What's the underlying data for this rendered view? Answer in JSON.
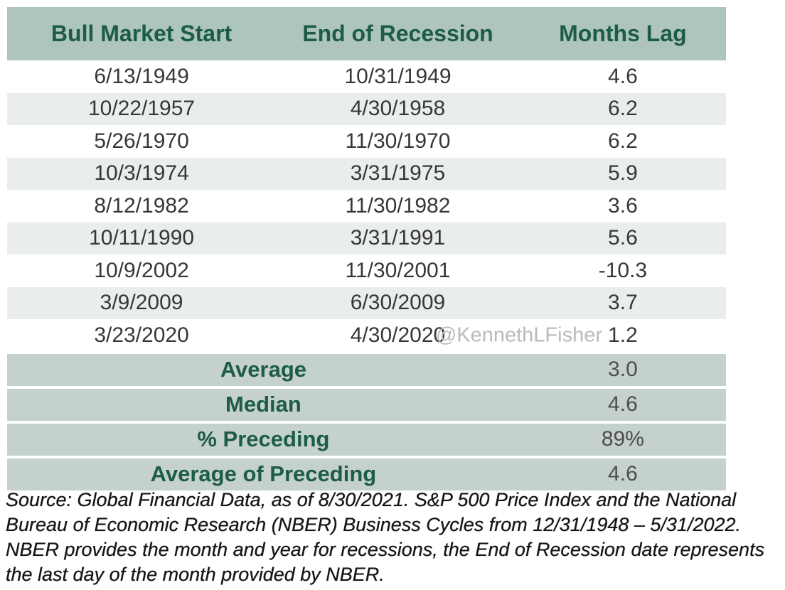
{
  "chart_data": {
    "type": "table",
    "columns": [
      "Bull Market Start",
      "End of Recession",
      "Months Lag"
    ],
    "rows": [
      [
        "6/13/1949",
        "10/31/1949",
        "4.6"
      ],
      [
        "10/22/1957",
        "4/30/1958",
        "6.2"
      ],
      [
        "5/26/1970",
        "11/30/1970",
        "6.2"
      ],
      [
        "10/3/1974",
        "3/31/1975",
        "5.9"
      ],
      [
        "8/12/1982",
        "11/30/1982",
        "3.6"
      ],
      [
        "10/11/1990",
        "3/31/1991",
        "5.6"
      ],
      [
        "10/9/2002",
        "11/30/2001",
        "-10.3"
      ],
      [
        "3/9/2009",
        "6/30/2009",
        "3.7"
      ],
      [
        "3/23/2020",
        "4/30/2020",
        "1.2"
      ]
    ],
    "summary_rows": [
      {
        "label": "Average",
        "value": "3.0"
      },
      {
        "label": "Median",
        "value": "4.6"
      },
      {
        "label": "% Preceding",
        "value": "89%"
      },
      {
        "label": "Average of Preceding",
        "value": "4.6"
      }
    ],
    "source_lines": [
      "Source: Global Financial Data, as of 8/30/2021. S&P 500 Price Index and the National",
      "Bureau of Economic Research (NBER) Business Cycles from 12/31/1948 – 5/31/2022.",
      "NBER provides the month and year for recessions, the End of Recession date represents",
      "the last day of the month provided by NBER."
    ]
  },
  "watermark": "@KennethLFisher",
  "colors": {
    "header_bg": "#aec5bb",
    "header_text": "#1d5c46",
    "alt_row_bg": "#e9edeb",
    "summary_bg": "#c5d2cb",
    "data_text": "#373737",
    "summary_value_text": "#4d4d4d",
    "watermark_text": "#b7bcb9",
    "source_text": "#151515"
  }
}
